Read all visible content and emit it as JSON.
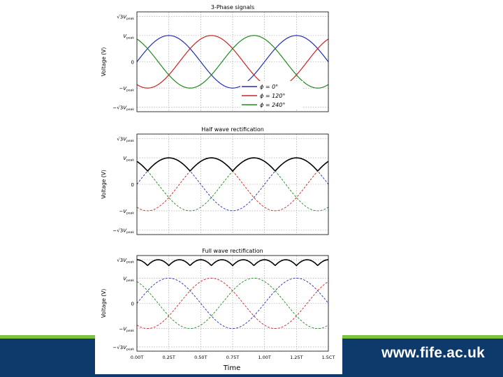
{
  "colors": {
    "footer_band": "#0d3a6b",
    "footer_stripe": "#7dc242",
    "series_blue": "#1f2eb4",
    "series_red": "#cc2222",
    "series_green": "#1e8a1e",
    "rectified": "#000000"
  },
  "footer": {
    "url": "www.fife.ac.uk"
  },
  "figure": {
    "xlabel": "Time",
    "ylabel": "Voltage (V)"
  },
  "chart_data": [
    {
      "type": "line",
      "title": "3-Phase signals",
      "xlabel": "",
      "ylabel": "Voltage (V)",
      "x_unit": "T",
      "xlim": [
        0,
        1.5
      ],
      "ylim": [
        -1.9,
        1.9
      ],
      "grid": true,
      "legend_position": "bottom-right",
      "y_ticks": [
        {
          "value": 1.732,
          "base": "V",
          "sub": "peak",
          "sqrt3": true,
          "sign": ""
        },
        {
          "value": 1,
          "base": "V",
          "sub": "peak",
          "sqrt3": false,
          "sign": ""
        },
        {
          "value": 0,
          "label": "0"
        },
        {
          "value": -1,
          "base": "V",
          "sub": "peak",
          "sqrt3": false,
          "sign": "−"
        },
        {
          "value": -1.732,
          "base": "V",
          "sub": "peak",
          "sqrt3": true,
          "sign": "−"
        }
      ],
      "series": [
        {
          "name": "ϕ = 0°",
          "phase_deg": 0,
          "amplitude": 1,
          "style": "solid",
          "color": "#1f2eb4"
        },
        {
          "name": "ϕ = 120°",
          "phase_deg": 120,
          "amplitude": 1,
          "style": "solid",
          "color": "#cc2222"
        },
        {
          "name": "ϕ = 240°",
          "phase_deg": 240,
          "amplitude": 1,
          "style": "solid",
          "color": "#1e8a1e"
        }
      ]
    },
    {
      "type": "line",
      "title": "Half wave rectification",
      "xlabel": "",
      "ylabel": "Voltage (V)",
      "x_unit": "T",
      "xlim": [
        0,
        1.5
      ],
      "ylim": [
        -1.9,
        1.9
      ],
      "grid": true,
      "y_ticks": [
        {
          "value": 1.732,
          "base": "V",
          "sub": "peak",
          "sqrt3": true,
          "sign": ""
        },
        {
          "value": 1,
          "base": "V",
          "sub": "peak",
          "sqrt3": false,
          "sign": ""
        },
        {
          "value": 0,
          "label": "0"
        },
        {
          "value": -1,
          "base": "V",
          "sub": "peak",
          "sqrt3": false,
          "sign": "−"
        },
        {
          "value": -1.732,
          "base": "V",
          "sub": "peak",
          "sqrt3": true,
          "sign": "−"
        }
      ],
      "series": [
        {
          "phase_deg": 0,
          "amplitude": 1,
          "style": "dashed",
          "color": "#1f2eb4"
        },
        {
          "phase_deg": 120,
          "amplitude": 1,
          "style": "dashed",
          "color": "#cc2222"
        },
        {
          "phase_deg": 240,
          "amplitude": 1,
          "style": "dashed",
          "color": "#1e8a1e"
        },
        {
          "kind": "max",
          "style": "solid",
          "color": "#000000"
        }
      ]
    },
    {
      "type": "line",
      "title": "Full wave rectification",
      "xlabel": "Time",
      "ylabel": "Voltage (V)",
      "x_unit": "T",
      "xlim": [
        0,
        1.5
      ],
      "ylim": [
        -1.9,
        1.9
      ],
      "grid": true,
      "x_ticks": [
        {
          "value": 0,
          "label": "0.00T"
        },
        {
          "value": 0.25,
          "label": "0.25T"
        },
        {
          "value": 0.5,
          "label": "0.50T"
        },
        {
          "value": 0.75,
          "label": "0.75T"
        },
        {
          "value": 1,
          "label": "1.00T"
        },
        {
          "value": 1.25,
          "label": "1.25T"
        },
        {
          "value": 1.5,
          "label": "1.5CT"
        }
      ],
      "y_ticks": [
        {
          "value": 1.732,
          "base": "V",
          "sub": "peak",
          "sqrt3": true,
          "sign": ""
        },
        {
          "value": 1,
          "base": "V",
          "sub": "peak",
          "sqrt3": false,
          "sign": ""
        },
        {
          "value": 0,
          "label": "0"
        },
        {
          "value": -1,
          "base": "V",
          "sub": "peak",
          "sqrt3": false,
          "sign": "−"
        },
        {
          "value": -1.732,
          "base": "V",
          "sub": "peak",
          "sqrt3": true,
          "sign": "−"
        }
      ],
      "series": [
        {
          "phase_deg": 0,
          "amplitude": 1,
          "style": "dashed",
          "color": "#1f2eb4"
        },
        {
          "phase_deg": 120,
          "amplitude": 1,
          "style": "dashed",
          "color": "#cc2222"
        },
        {
          "phase_deg": 240,
          "amplitude": 1,
          "style": "dashed",
          "color": "#1e8a1e"
        },
        {
          "kind": "max_minus_min",
          "style": "solid",
          "color": "#000000"
        }
      ]
    }
  ]
}
